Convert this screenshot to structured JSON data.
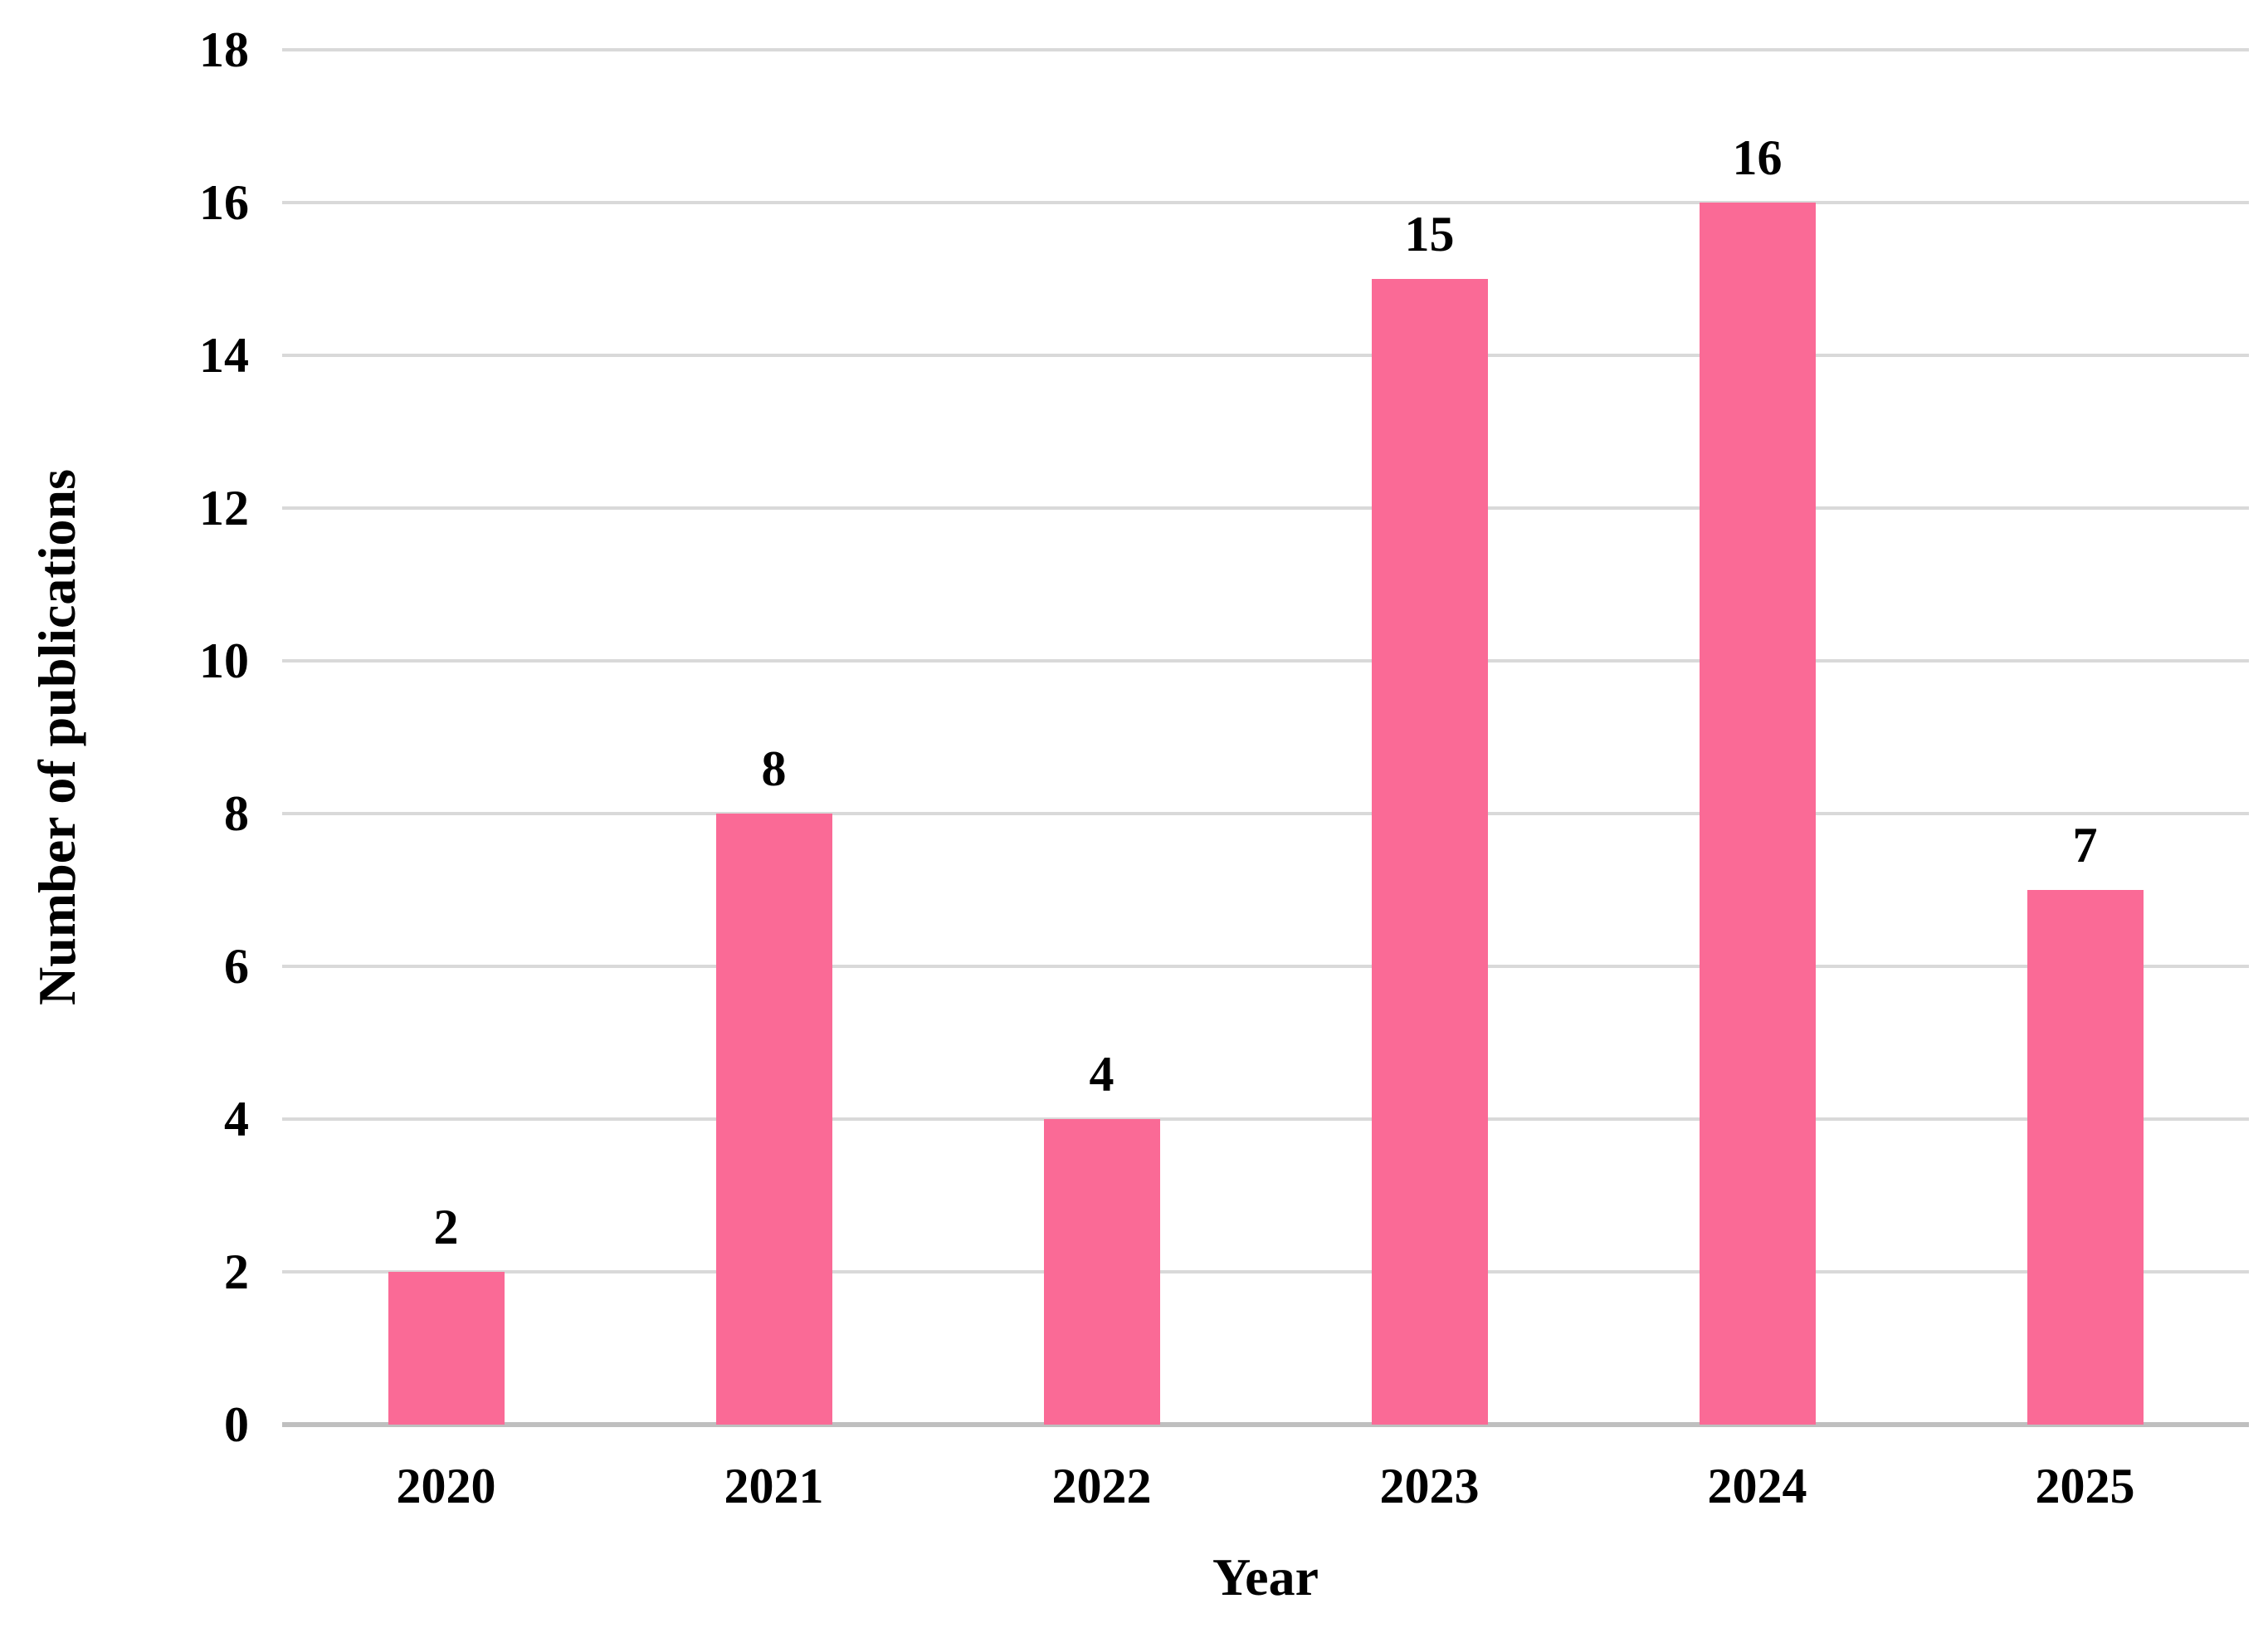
{
  "chart_data": {
    "type": "bar",
    "title": "",
    "categories": [
      "2020",
      "2021",
      "2022",
      "2023",
      "2024",
      "2025"
    ],
    "values": [
      2,
      8,
      4,
      15,
      16,
      7
    ],
    "data_labels": [
      "2",
      "8",
      "4",
      "15",
      "16",
      "7"
    ],
    "xlabel": "Year",
    "ylabel": "Number of publications",
    "ylim": [
      0,
      18
    ],
    "yticks": [
      "0",
      "2",
      "4",
      "6",
      "8",
      "10",
      "12",
      "14",
      "16",
      "18"
    ],
    "grid": "horizontal gridlines on, every 2 units",
    "legend": "none",
    "bar_color": "#FA6A96",
    "gridline_color": "#D9D9D9",
    "axis_line_color": "#BFBFBF",
    "text_color": "#000000"
  }
}
